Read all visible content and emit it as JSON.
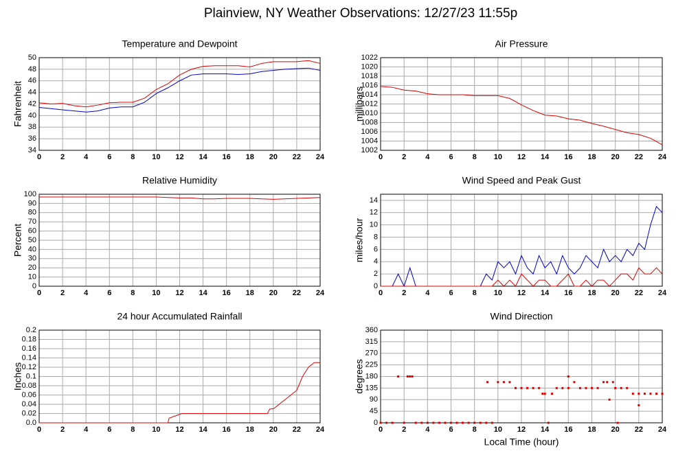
{
  "title": "Plainview, NY Weather Observations: 12/27/23 11:55p",
  "chart_data": [
    {
      "type": "line",
      "title": "Temperature and Dewpoint",
      "ylabel": "Fahrenheit",
      "x": [
        0,
        1,
        2,
        3,
        4,
        5,
        6,
        7,
        8,
        9,
        10,
        11,
        12,
        13,
        14,
        15,
        16,
        17,
        18,
        19,
        20,
        21,
        22,
        23,
        24
      ],
      "series": [
        {
          "color": "#dd0000",
          "values": [
            42.2,
            42.0,
            42.1,
            41.7,
            41.5,
            41.8,
            42.2,
            42.3,
            42.3,
            43.0,
            44.5,
            45.5,
            47.0,
            48.0,
            48.5,
            48.6,
            48.6,
            48.6,
            48.4,
            49.0,
            49.3,
            49.3,
            49.3,
            49.5,
            49.0
          ]
        },
        {
          "color": "#0000cc",
          "values": [
            41.4,
            41.2,
            41.0,
            40.8,
            40.6,
            40.8,
            41.3,
            41.5,
            41.5,
            42.3,
            43.8,
            44.8,
            46.0,
            47.0,
            47.2,
            47.2,
            47.2,
            47.1,
            47.2,
            47.6,
            47.8,
            48.0,
            48.1,
            48.2,
            47.8
          ]
        }
      ],
      "xlim": [
        0,
        24
      ],
      "xticks": [
        0,
        2,
        4,
        6,
        8,
        10,
        12,
        14,
        16,
        18,
        20,
        22,
        24
      ],
      "ylim": [
        34,
        50
      ],
      "yticks": [
        34,
        36,
        38,
        40,
        42,
        44,
        46,
        48,
        50
      ],
      "grid": true
    },
    {
      "type": "line",
      "title": "Air Pressure",
      "ylabel": "millibars",
      "x": [
        0,
        1,
        2,
        3,
        4,
        5,
        6,
        7,
        8,
        9,
        10,
        11,
        12,
        13,
        14,
        15,
        16,
        17,
        18,
        19,
        20,
        21,
        22,
        23,
        24
      ],
      "series": [
        {
          "color": "#dd0000",
          "values": [
            1015.8,
            1015.6,
            1015.0,
            1014.8,
            1014.2,
            1014.0,
            1014.0,
            1014.0,
            1013.8,
            1013.8,
            1013.8,
            1013.2,
            1011.8,
            1010.6,
            1009.6,
            1009.4,
            1008.8,
            1008.5,
            1007.8,
            1007.2,
            1006.5,
            1005.8,
            1005.4,
            1004.6,
            1003.2
          ]
        }
      ],
      "xlim": [
        0,
        24
      ],
      "xticks": [
        0,
        2,
        4,
        6,
        8,
        10,
        12,
        14,
        16,
        18,
        20,
        22,
        24
      ],
      "ylim": [
        1002,
        1022
      ],
      "yticks": [
        1002,
        1004,
        1006,
        1008,
        1010,
        1012,
        1014,
        1016,
        1018,
        1020,
        1022
      ],
      "grid": true
    },
    {
      "type": "line",
      "title": "Relative Humidity",
      "ylabel": "Percent",
      "x": [
        0,
        1,
        2,
        3,
        4,
        5,
        6,
        7,
        8,
        9,
        10,
        11,
        12,
        13,
        14,
        15,
        16,
        17,
        18,
        19,
        20,
        21,
        22,
        23,
        24
      ],
      "series": [
        {
          "color": "#dd0000",
          "values": [
            97,
            97,
            97,
            97,
            97,
            97,
            97,
            97,
            97,
            97,
            97,
            96.5,
            96,
            96,
            95,
            95,
            95.5,
            95.5,
            95.5,
            95,
            94.5,
            95,
            95.5,
            96,
            96.5
          ]
        }
      ],
      "xlim": [
        0,
        24
      ],
      "xticks": [
        0,
        2,
        4,
        6,
        8,
        10,
        12,
        14,
        16,
        18,
        20,
        22,
        24
      ],
      "ylim": [
        0,
        100
      ],
      "yticks": [
        0,
        10,
        20,
        30,
        40,
        50,
        60,
        70,
        80,
        90,
        100
      ],
      "grid": true
    },
    {
      "type": "line",
      "title": "Wind Speed and Peak Gust",
      "ylabel": "miles/hour",
      "x": [
        0,
        0.5,
        1,
        1.5,
        2,
        2.5,
        3,
        3.5,
        4,
        4.5,
        5,
        5.5,
        6,
        6.5,
        7,
        7.5,
        8,
        8.5,
        9,
        9.5,
        10,
        10.5,
        11,
        11.5,
        12,
        12.5,
        13,
        13.5,
        14,
        14.5,
        15,
        15.5,
        16,
        16.5,
        17,
        17.5,
        18,
        18.5,
        19,
        19.5,
        20,
        20.5,
        21,
        21.5,
        22,
        22.5,
        23,
        23.5,
        24
      ],
      "series": [
        {
          "color": "#0000cc",
          "values": [
            0,
            0,
            0,
            2,
            0,
            3,
            0,
            0,
            0,
            0,
            0,
            0,
            0,
            0,
            0,
            0,
            0,
            0,
            2,
            1,
            4,
            3,
            4,
            2,
            5,
            3,
            2,
            5,
            3,
            4,
            2,
            5,
            3,
            2,
            3,
            5,
            4,
            3,
            6,
            4,
            5,
            4,
            6,
            5,
            7,
            6,
            10,
            13,
            12
          ]
        },
        {
          "color": "#dd0000",
          "values": [
            0,
            0,
            0,
            0,
            0,
            0,
            0,
            0,
            0,
            0,
            0,
            0,
            0,
            0,
            0,
            0,
            0,
            0,
            0,
            0,
            1,
            0,
            1,
            0,
            2,
            1,
            0,
            1,
            1,
            0,
            0,
            1,
            2,
            0,
            0,
            1,
            0,
            1,
            1,
            0,
            1,
            2,
            2,
            1,
            3,
            2,
            2,
            3,
            2
          ]
        }
      ],
      "xlim": [
        0,
        24
      ],
      "xticks": [
        0,
        2,
        4,
        6,
        8,
        10,
        12,
        14,
        16,
        18,
        20,
        22,
        24
      ],
      "ylim": [
        0,
        15
      ],
      "yticks": [
        0,
        2,
        4,
        6,
        8,
        10,
        12,
        14
      ],
      "grid": true
    },
    {
      "type": "line",
      "title": "24 hour Accumulated Rainfall",
      "ylabel": "Inches",
      "x": [
        0,
        11,
        11.1,
        12.2,
        19.5,
        19.7,
        20,
        20.5,
        21,
        21.5,
        22,
        22.5,
        23,
        23.5,
        24
      ],
      "series": [
        {
          "color": "#dd0000",
          "values": [
            0,
            0,
            0.01,
            0.02,
            0.02,
            0.03,
            0.03,
            0.04,
            0.05,
            0.06,
            0.07,
            0.1,
            0.12,
            0.13,
            0.13
          ]
        }
      ],
      "xlim": [
        0,
        24
      ],
      "xticks": [
        0,
        2,
        4,
        6,
        8,
        10,
        12,
        14,
        16,
        18,
        20,
        22,
        24
      ],
      "ylim": [
        0,
        0.2
      ],
      "yticks": [
        {
          "value": 0,
          "label": "0.0"
        },
        0.02,
        0.04,
        0.06,
        0.08,
        0.1,
        0.12,
        0.14,
        0.16,
        0.18,
        0.2
      ],
      "grid": true
    },
    {
      "type": "scatter",
      "title": "Wind Direction",
      "ylabel": "degrees",
      "xlabel": "Local Time (hour)",
      "x": [
        0,
        0.5,
        1,
        1.5,
        2,
        2.3,
        2.5,
        2.7,
        3,
        3.5,
        4,
        4.5,
        5,
        5.5,
        6,
        6.5,
        7,
        7.5,
        8,
        8.5,
        9,
        9.1,
        9.5,
        10,
        10.5,
        11,
        11.5,
        12,
        12.5,
        13,
        13.5,
        13.8,
        14,
        14.3,
        14.6,
        15,
        15.5,
        16,
        16,
        16.5,
        17,
        17.5,
        18,
        18.5,
        19,
        19.3,
        19.5,
        19.8,
        20,
        20.2,
        20.5,
        21,
        21.5,
        22,
        22,
        22.5,
        23,
        23.5,
        24
      ],
      "series": [
        {
          "color": "#dd0000",
          "values": [
            0,
            0,
            0,
            180,
            0,
            180,
            180,
            180,
            0,
            0,
            0,
            0,
            0,
            0,
            0,
            0,
            0,
            0,
            0,
            0,
            0,
            158,
            0,
            158,
            158,
            158,
            135,
            135,
            135,
            135,
            135,
            113,
            113,
            0,
            113,
            135,
            135,
            180,
            135,
            158,
            135,
            135,
            135,
            135,
            158,
            158,
            90,
            158,
            135,
            0,
            135,
            135,
            113,
            113,
            68,
            113,
            113,
            113,
            113
          ]
        }
      ],
      "xlim": [
        0,
        24
      ],
      "xticks": [
        0,
        2,
        4,
        6,
        8,
        10,
        12,
        14,
        16,
        18,
        20,
        22,
        24
      ],
      "ylim": [
        0,
        360
      ],
      "yticks": [
        0,
        45,
        90,
        135,
        180,
        225,
        270,
        315,
        360
      ],
      "grid": true
    }
  ]
}
